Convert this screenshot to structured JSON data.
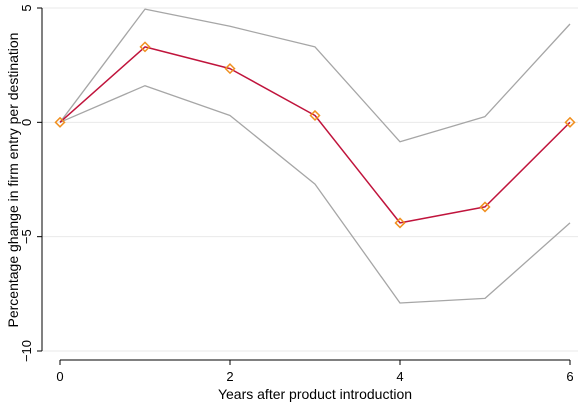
{
  "chart_data": {
    "type": "line",
    "title": "",
    "xlabel": "Years after product introduction",
    "ylabel": "Percentage ghange in firm entry per destination",
    "xlim": [
      0,
      6
    ],
    "ylim": [
      -10,
      5
    ],
    "xticks": [
      0,
      2,
      4,
      6
    ],
    "yticks": [
      -10,
      -5,
      0,
      5
    ],
    "grid": true,
    "x": [
      0,
      1,
      2,
      3,
      4,
      5,
      6
    ],
    "series": [
      {
        "role": "upper-bound",
        "values": [
          0,
          4.95,
          4.2,
          3.3,
          -0.85,
          0.25,
          4.3
        ],
        "color": "#a6a6a6"
      },
      {
        "role": "lower-bound",
        "values": [
          0,
          1.6,
          0.3,
          -2.7,
          -7.9,
          -7.7,
          -4.4
        ],
        "color": "#a6a6a6"
      },
      {
        "role": "point-estimate",
        "values": [
          0,
          3.3,
          2.35,
          0.3,
          -4.4,
          -3.7,
          0
        ],
        "color": "#c0143c",
        "marker": "diamond",
        "marker_color": "#f09020"
      }
    ]
  }
}
